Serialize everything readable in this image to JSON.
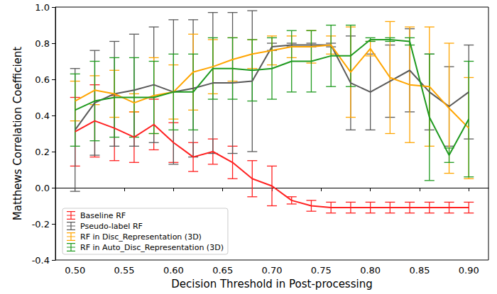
{
  "chart_data": {
    "type": "line",
    "x_label": "Decision Threshold in Post-processing",
    "y_label": "Matthews Correlation Coefficient",
    "x": [
      0.5,
      0.52,
      0.54,
      0.56,
      0.58,
      0.6,
      0.62,
      0.64,
      0.66,
      0.68,
      0.7,
      0.72,
      0.74,
      0.76,
      0.78,
      0.8,
      0.82,
      0.84,
      0.86,
      0.88,
      0.9
    ],
    "xlim": [
      0.48,
      0.92
    ],
    "xticks": [
      {
        "value": 0.5,
        "label": "0.50"
      },
      {
        "value": 0.55,
        "label": "0.55"
      },
      {
        "value": 0.6,
        "label": "0.60"
      },
      {
        "value": 0.65,
        "label": "0.65"
      },
      {
        "value": 0.7,
        "label": "0.70"
      },
      {
        "value": 0.75,
        "label": "0.75"
      },
      {
        "value": 0.8,
        "label": "0.80"
      },
      {
        "value": 0.85,
        "label": "0.85"
      },
      {
        "value": 0.9,
        "label": "0.90"
      }
    ],
    "ylim": [
      -0.4,
      1.0
    ],
    "yticks": [
      -0.4,
      -0.2,
      {
        "value": 0,
        "label": "0.0"
      },
      0.2,
      0.4,
      0.6,
      0.8,
      {
        "value": 1.0,
        "label": "1.0"
      }
    ],
    "grid": false,
    "legend": "lower left",
    "series": [
      {
        "name": "Baseline RF",
        "color": "#ff2020",
        "values": [
          0.31,
          0.37,
          0.33,
          0.28,
          0.35,
          0.25,
          0.17,
          0.2,
          0.14,
          0.05,
          0.01,
          -0.07,
          -0.1,
          -0.11,
          -0.11,
          -0.11,
          -0.11,
          -0.11,
          -0.11,
          -0.11,
          -0.11
        ],
        "errors": [
          0.19,
          0.2,
          0.18,
          0.14,
          0.14,
          0.11,
          0.08,
          0.07,
          0.09,
          0.1,
          0.11,
          0.02,
          0.03,
          0.03,
          0.03,
          0.03,
          0.03,
          0.03,
          0.03,
          0.03,
          0.03
        ]
      },
      {
        "name": "Pseudo-label RF",
        "color": "#5a5a5a",
        "values": [
          0.32,
          0.47,
          0.52,
          0.54,
          0.57,
          0.53,
          0.55,
          0.58,
          0.58,
          0.59,
          0.78,
          0.79,
          0.79,
          0.79,
          0.58,
          0.53,
          0.59,
          0.65,
          0.53,
          0.45,
          0.53
        ],
        "errors": [
          0.34,
          0.29,
          0.29,
          0.31,
          0.32,
          0.4,
          0.38,
          0.39,
          0.39,
          0.39,
          0.02,
          0.01,
          0.01,
          0.01,
          0.26,
          0.21,
          0.2,
          0.23,
          0.21,
          0.22,
          0.26
        ]
      },
      {
        "name": "RF in Disc_Representation (3D)",
        "color": "#ffa500",
        "values": [
          0.48,
          0.54,
          0.52,
          0.47,
          0.51,
          0.53,
          0.64,
          0.67,
          0.71,
          0.74,
          0.76,
          0.78,
          0.78,
          0.79,
          0.64,
          0.77,
          0.61,
          0.57,
          0.56,
          0.44,
          0.33
        ],
        "errors": [
          0.11,
          0.08,
          0.13,
          0.05,
          0.21,
          0.15,
          0.21,
          0.15,
          0.12,
          0.08,
          0.08,
          0.06,
          0.09,
          0.05,
          0.25,
          0.04,
          0.31,
          0.32,
          0.33,
          0.36,
          0.28
        ]
      },
      {
        "name": "RF in Auto_Disc_Representation (3D)",
        "color": "#1f9a1f",
        "values": [
          0.43,
          0.48,
          0.5,
          0.5,
          0.5,
          0.53,
          0.53,
          0.66,
          0.66,
          0.65,
          0.66,
          0.7,
          0.7,
          0.73,
          0.73,
          0.82,
          0.82,
          0.81,
          0.39,
          0.18,
          0.38
        ],
        "errors": [
          0.2,
          0.22,
          0.22,
          0.22,
          0.2,
          0.21,
          0.21,
          0.17,
          0.17,
          0.17,
          0.17,
          0.17,
          0.17,
          0.17,
          0.17,
          0.01,
          0.01,
          0.02,
          0.35,
          0.04,
          0.32
        ]
      }
    ]
  }
}
